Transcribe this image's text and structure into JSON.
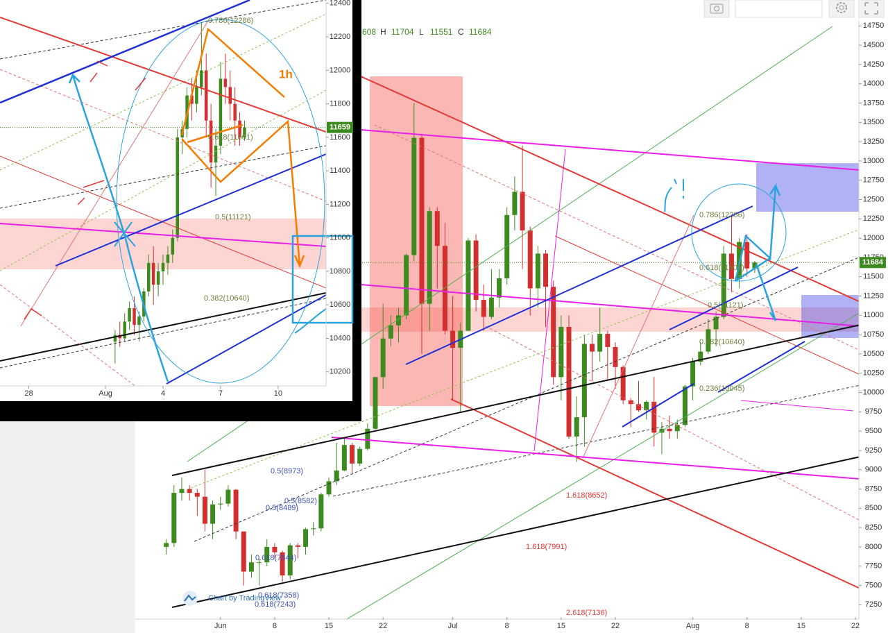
{
  "chart_data": [
    {
      "type": "candlestick",
      "ohlc_legend": [
        "608",
        "H",
        "11704",
        "L",
        "11551",
        "C",
        "11684"
      ],
      "up_color": "#3d8b1f",
      "down_color": "#d32f2f",
      "xlim": [
        "05-21",
        "08-22"
      ],
      "xticks": [
        {
          "value": "06-01",
          "label": "Jun"
        },
        {
          "value": "06-08",
          "label": "8"
        },
        {
          "value": "06-15",
          "label": "15"
        },
        {
          "value": "06-22",
          "label": "22"
        },
        {
          "value": "07-01",
          "label": "Jul"
        },
        {
          "value": "07-08",
          "label": "8"
        },
        {
          "value": "07-15",
          "label": "15"
        },
        {
          "value": "07-22",
          "label": "22"
        },
        {
          "value": "08-01",
          "label": "Aug"
        },
        {
          "value": "08-08",
          "label": "8"
        },
        {
          "value": "08-15",
          "label": "15"
        },
        {
          "value": "08-22",
          "label": "22"
        }
      ],
      "ylim": [
        7100,
        14780
      ],
      "yticks": [
        7250,
        7500,
        7750,
        8000,
        8250,
        8500,
        8750,
        9000,
        9250,
        9500,
        9750,
        10000,
        10250,
        10500,
        10750,
        11000,
        11250,
        11500,
        11750,
        12000,
        12250,
        12500,
        12750,
        13000,
        13250,
        13500,
        13750,
        14000,
        14250,
        14500,
        14750
      ],
      "last_price": 11684,
      "last_price_color": "#3d8b1f",
      "annotations": [
        {
          "text": "0.786(12286)",
          "color": "#6d7f3d"
        },
        {
          "text": "0.618(11601)",
          "color": "#6d7f3d"
        },
        {
          "text": "0.5(11121)",
          "color": "#6d7f3d"
        },
        {
          "text": "0.382(10640)",
          "color": "#6d7f3d"
        },
        {
          "text": "0.236(10045)",
          "color": "#6d7f3d"
        },
        {
          "text": "0.5(8973)",
          "color": "#3f51b5"
        },
        {
          "text": "0.5(8582)",
          "color": "#3f51b5"
        },
        {
          "text": "0.5(8489)",
          "color": "#3f51b5"
        },
        {
          "text": "0.618(7844)",
          "color": "#3f51b5"
        },
        {
          "text": "0.618(7358)",
          "color": "#3f51b5"
        },
        {
          "text": "0.618(7243)",
          "color": "#3f51b5"
        },
        {
          "text": "1.618(8652)",
          "color": "#e53935"
        },
        {
          "text": "1.618(7991)",
          "color": "#e53935"
        },
        {
          "text": "2.618(7136)",
          "color": "#e53935"
        }
      ],
      "credit": "Chart by TradingView",
      "candles": [
        {
          "x": "05-25",
          "o": 8000,
          "h": 8100,
          "l": 7900,
          "c": 8050
        },
        {
          "x": "05-26",
          "o": 8050,
          "h": 8800,
          "l": 8000,
          "c": 8700
        },
        {
          "x": "05-27",
          "o": 8700,
          "h": 8900,
          "l": 8600,
          "c": 8750
        },
        {
          "x": "05-28",
          "o": 8750,
          "h": 8800,
          "l": 8600,
          "c": 8700
        },
        {
          "x": "05-29",
          "o": 8700,
          "h": 8750,
          "l": 8400,
          "c": 8650
        },
        {
          "x": "05-30",
          "o": 8650,
          "h": 9000,
          "l": 8200,
          "c": 8300
        },
        {
          "x": "05-31",
          "o": 8300,
          "h": 8600,
          "l": 8100,
          "c": 8550
        },
        {
          "x": "06-01",
          "o": 8550,
          "h": 8650,
          "l": 8480,
          "c": 8560
        },
        {
          "x": "06-02",
          "o": 8560,
          "h": 8800,
          "l": 8520,
          "c": 8740
        },
        {
          "x": "06-03",
          "o": 8740,
          "h": 8750,
          "l": 8100,
          "c": 8200
        },
        {
          "x": "06-04",
          "o": 8200,
          "h": 8200,
          "l": 7500,
          "c": 7680
        },
        {
          "x": "06-05",
          "o": 7680,
          "h": 7900,
          "l": 7600,
          "c": 7800
        },
        {
          "x": "06-06",
          "o": 7800,
          "h": 7850,
          "l": 7500,
          "c": 7800
        },
        {
          "x": "06-07",
          "o": 7800,
          "h": 8100,
          "l": 7750,
          "c": 8000
        },
        {
          "x": "06-08",
          "o": 8000,
          "h": 8050,
          "l": 7850,
          "c": 7930
        },
        {
          "x": "06-09",
          "o": 7930,
          "h": 7950,
          "l": 7550,
          "c": 7630
        },
        {
          "x": "06-10",
          "o": 7630,
          "h": 8050,
          "l": 7580,
          "c": 8020
        },
        {
          "x": "06-11",
          "o": 8020,
          "h": 8050,
          "l": 7850,
          "c": 8000
        },
        {
          "x": "06-12",
          "o": 8000,
          "h": 8250,
          "l": 7900,
          "c": 8230
        },
        {
          "x": "06-13",
          "o": 8230,
          "h": 8320,
          "l": 8150,
          "c": 8240
        },
        {
          "x": "06-14",
          "o": 8240,
          "h": 8700,
          "l": 8200,
          "c": 8680
        },
        {
          "x": "06-15",
          "o": 8680,
          "h": 8900,
          "l": 8650,
          "c": 8850
        },
        {
          "x": "06-16",
          "o": 8850,
          "h": 9350,
          "l": 8800,
          "c": 8990
        },
        {
          "x": "06-17",
          "o": 8990,
          "h": 9400,
          "l": 8980,
          "c": 9320
        },
        {
          "x": "06-18",
          "o": 9320,
          "h": 9350,
          "l": 8950,
          "c": 9080
        },
        {
          "x": "06-19",
          "o": 9080,
          "h": 9300,
          "l": 9050,
          "c": 9270
        },
        {
          "x": "06-20",
          "o": 9270,
          "h": 9600,
          "l": 9250,
          "c": 9530
        },
        {
          "x": "06-21",
          "o": 9530,
          "h": 10200,
          "l": 9520,
          "c": 10200
        },
        {
          "x": "06-22",
          "o": 10200,
          "h": 11150,
          "l": 10050,
          "c": 10700
        },
        {
          "x": "06-23",
          "o": 10700,
          "h": 11000,
          "l": 10600,
          "c": 10870
        },
        {
          "x": "06-24",
          "o": 10870,
          "h": 11100,
          "l": 10650,
          "c": 11000
        },
        {
          "x": "06-25",
          "o": 11000,
          "h": 11800,
          "l": 10950,
          "c": 11780
        },
        {
          "x": "06-26",
          "o": 11780,
          "h": 13750,
          "l": 11700,
          "c": 13300
        },
        {
          "x": "06-27",
          "o": 13300,
          "h": 13350,
          "l": 10500,
          "c": 11150
        },
        {
          "x": "06-28",
          "o": 11150,
          "h": 12400,
          "l": 10800,
          "c": 12350
        },
        {
          "x": "06-29",
          "o": 12350,
          "h": 12400,
          "l": 11350,
          "c": 11900
        },
        {
          "x": "06-30",
          "o": 11900,
          "h": 12200,
          "l": 10750,
          "c": 10800
        },
        {
          "x": "07-01",
          "o": 10800,
          "h": 11250,
          "l": 9900,
          "c": 10580
        },
        {
          "x": "07-02",
          "o": 10580,
          "h": 10900,
          "l": 9750,
          "c": 10800
        },
        {
          "x": "07-03",
          "o": 10800,
          "h": 12000,
          "l": 10800,
          "c": 11970
        },
        {
          "x": "07-04",
          "o": 11970,
          "h": 12050,
          "l": 11050,
          "c": 11200
        },
        {
          "x": "07-05",
          "o": 11200,
          "h": 11400,
          "l": 10800,
          "c": 10980
        },
        {
          "x": "07-06",
          "o": 10980,
          "h": 11600,
          "l": 10950,
          "c": 11230
        },
        {
          "x": "07-07",
          "o": 11230,
          "h": 11600,
          "l": 11100,
          "c": 11480
        },
        {
          "x": "07-08",
          "o": 11480,
          "h": 12400,
          "l": 11400,
          "c": 12300
        },
        {
          "x": "07-09",
          "o": 12300,
          "h": 12800,
          "l": 12100,
          "c": 12600
        },
        {
          "x": "07-10",
          "o": 12600,
          "h": 13200,
          "l": 11600,
          "c": 12100
        },
        {
          "x": "07-11",
          "o": 12100,
          "h": 12150,
          "l": 11000,
          "c": 11350
        },
        {
          "x": "07-12",
          "o": 11350,
          "h": 11900,
          "l": 11100,
          "c": 11800
        },
        {
          "x": "07-13",
          "o": 11800,
          "h": 11850,
          "l": 10850,
          "c": 11370
        },
        {
          "x": "07-14",
          "o": 11370,
          "h": 11450,
          "l": 10100,
          "c": 10200
        },
        {
          "x": "07-15",
          "o": 10200,
          "h": 11000,
          "l": 9900,
          "c": 10850
        },
        {
          "x": "07-16",
          "o": 10850,
          "h": 11000,
          "l": 9400,
          "c": 9430
        },
        {
          "x": "07-17",
          "o": 9430,
          "h": 9950,
          "l": 9100,
          "c": 9680
        },
        {
          "x": "07-18",
          "o": 9680,
          "h": 10750,
          "l": 9300,
          "c": 10630
        },
        {
          "x": "07-19",
          "o": 10630,
          "h": 10750,
          "l": 10150,
          "c": 10530
        },
        {
          "x": "07-20",
          "o": 10530,
          "h": 11100,
          "l": 10400,
          "c": 10760
        },
        {
          "x": "07-21",
          "o": 10760,
          "h": 10800,
          "l": 10150,
          "c": 10590
        },
        {
          "x": "07-22",
          "o": 10590,
          "h": 10650,
          "l": 10050,
          "c": 10330
        },
        {
          "x": "07-23",
          "o": 10330,
          "h": 10350,
          "l": 9850,
          "c": 9900
        },
        {
          "x": "07-24",
          "o": 9900,
          "h": 9930,
          "l": 9550,
          "c": 9850
        },
        {
          "x": "07-25",
          "o": 9850,
          "h": 10150,
          "l": 9750,
          "c": 9770
        },
        {
          "x": "07-26",
          "o": 9770,
          "h": 9900,
          "l": 9650,
          "c": 9880
        },
        {
          "x": "07-27",
          "o": 9880,
          "h": 10200,
          "l": 9300,
          "c": 9480
        },
        {
          "x": "07-28",
          "o": 9480,
          "h": 9620,
          "l": 9200,
          "c": 9530
        },
        {
          "x": "07-29",
          "o": 9530,
          "h": 9700,
          "l": 9400,
          "c": 9500
        },
        {
          "x": "07-30",
          "o": 9500,
          "h": 9650,
          "l": 9400,
          "c": 9580
        },
        {
          "x": "07-31",
          "o": 9580,
          "h": 10100,
          "l": 9550,
          "c": 10080
        },
        {
          "x": "08-01",
          "o": 10080,
          "h": 10450,
          "l": 9900,
          "c": 10400
        },
        {
          "x": "08-02",
          "o": 10400,
          "h": 10650,
          "l": 10350,
          "c": 10530
        },
        {
          "x": "08-03",
          "o": 10530,
          "h": 10950,
          "l": 10500,
          "c": 10820
        },
        {
          "x": "08-04",
          "o": 10820,
          "h": 11050,
          "l": 10600,
          "c": 10980
        },
        {
          "x": "08-05",
          "o": 10980,
          "h": 11900,
          "l": 10950,
          "c": 11800
        },
        {
          "x": "08-06",
          "o": 11800,
          "h": 12300,
          "l": 11300,
          "c": 11470
        },
        {
          "x": "08-07",
          "o": 11470,
          "h": 12000,
          "l": 11350,
          "c": 11950
        },
        {
          "x": "08-08",
          "o": 11950,
          "h": 12050,
          "l": 11500,
          "c": 11608
        },
        {
          "x": "08-09",
          "o": 11608,
          "h": 11704,
          "l": 11551,
          "c": 11684
        }
      ]
    },
    {
      "type": "candlestick",
      "up_color": "#3d8b1f",
      "down_color": "#d32f2f",
      "xlim": [
        "07-26 12",
        "08-12 12"
      ],
      "xticks": [
        {
          "value": "07-28 00",
          "label": "28"
        },
        {
          "value": "08-01 00",
          "label": "Aug"
        },
        {
          "value": "08-04 00",
          "label": "4"
        },
        {
          "value": "08-07 00",
          "label": "7"
        },
        {
          "value": "08-10 00",
          "label": "10"
        }
      ],
      "ylim": [
        10120,
        12420
      ],
      "yticks": [
        10200,
        10400,
        10600,
        10800,
        11000,
        11200,
        11400,
        11600,
        11800,
        12000,
        12200,
        12400
      ],
      "last_price": 11659,
      "last_price_color": "#3d8b1f",
      "label": "1h",
      "label_color": "#f57c00",
      "annotations": [
        {
          "text": "0.786(12286)",
          "color": "#6d7f3d"
        },
        {
          "text": "0.618(11601)",
          "color": "#6d7f3d"
        },
        {
          "text": "0.5(11121)",
          "color": "#6d7f3d"
        },
        {
          "text": "0.382(10640)",
          "color": "#6d7f3d"
        }
      ],
      "candles": [
        {
          "x": "08-01 12",
          "o": 10380,
          "h": 10450,
          "l": 10250,
          "c": 10420
        },
        {
          "x": "08-01 18",
          "o": 10420,
          "h": 10500,
          "l": 10350,
          "c": 10400
        },
        {
          "x": "08-02 00",
          "o": 10400,
          "h": 10550,
          "l": 10380,
          "c": 10500
        },
        {
          "x": "08-02 06",
          "o": 10500,
          "h": 10620,
          "l": 10450,
          "c": 10580
        },
        {
          "x": "08-02 12",
          "o": 10580,
          "h": 10650,
          "l": 10420,
          "c": 10480
        },
        {
          "x": "08-02 18",
          "o": 10480,
          "h": 10560,
          "l": 10380,
          "c": 10530
        },
        {
          "x": "08-03 00",
          "o": 10530,
          "h": 10700,
          "l": 10500,
          "c": 10680
        },
        {
          "x": "08-03 06",
          "o": 10680,
          "h": 10900,
          "l": 10650,
          "c": 10850
        },
        {
          "x": "08-03 12",
          "o": 10850,
          "h": 10950,
          "l": 10600,
          "c": 10720
        },
        {
          "x": "08-03 18",
          "o": 10720,
          "h": 10850,
          "l": 10650,
          "c": 10800
        },
        {
          "x": "08-04 00",
          "o": 10800,
          "h": 10900,
          "l": 10720,
          "c": 10850
        },
        {
          "x": "08-04 06",
          "o": 10850,
          "h": 10950,
          "l": 10780,
          "c": 10900
        },
        {
          "x": "08-04 12",
          "o": 10900,
          "h": 11050,
          "l": 10850,
          "c": 11000
        },
        {
          "x": "08-04 18",
          "o": 11000,
          "h": 11650,
          "l": 10980,
          "c": 11600
        },
        {
          "x": "08-05 00",
          "o": 11600,
          "h": 11700,
          "l": 11500,
          "c": 11650
        },
        {
          "x": "08-05 06",
          "o": 11650,
          "h": 11900,
          "l": 11600,
          "c": 11850
        },
        {
          "x": "08-05 12",
          "o": 11850,
          "h": 11950,
          "l": 11700,
          "c": 11800
        },
        {
          "x": "08-05 18",
          "o": 11800,
          "h": 12000,
          "l": 11750,
          "c": 11900
        },
        {
          "x": "08-06 00",
          "o": 11900,
          "h": 12286,
          "l": 11850,
          "c": 12000
        },
        {
          "x": "08-06 06",
          "o": 12000,
          "h": 12100,
          "l": 11600,
          "c": 11700
        },
        {
          "x": "08-06 12",
          "o": 11700,
          "h": 11800,
          "l": 11300,
          "c": 11450
        },
        {
          "x": "08-06 18",
          "o": 11450,
          "h": 11650,
          "l": 11250,
          "c": 11550
        },
        {
          "x": "08-07 00",
          "o": 11550,
          "h": 12050,
          "l": 11500,
          "c": 11950
        },
        {
          "x": "08-07 06",
          "o": 11950,
          "h": 12100,
          "l": 11800,
          "c": 11900
        },
        {
          "x": "08-07 12",
          "o": 11900,
          "h": 12000,
          "l": 11700,
          "c": 11800
        },
        {
          "x": "08-07 18",
          "o": 11800,
          "h": 11900,
          "l": 11550,
          "c": 11700
        },
        {
          "x": "08-08 00",
          "o": 11700,
          "h": 11750,
          "l": 11550,
          "c": 11600
        },
        {
          "x": "08-08 06",
          "o": 11600,
          "h": 11700,
          "l": 11580,
          "c": 11659
        }
      ]
    }
  ]
}
